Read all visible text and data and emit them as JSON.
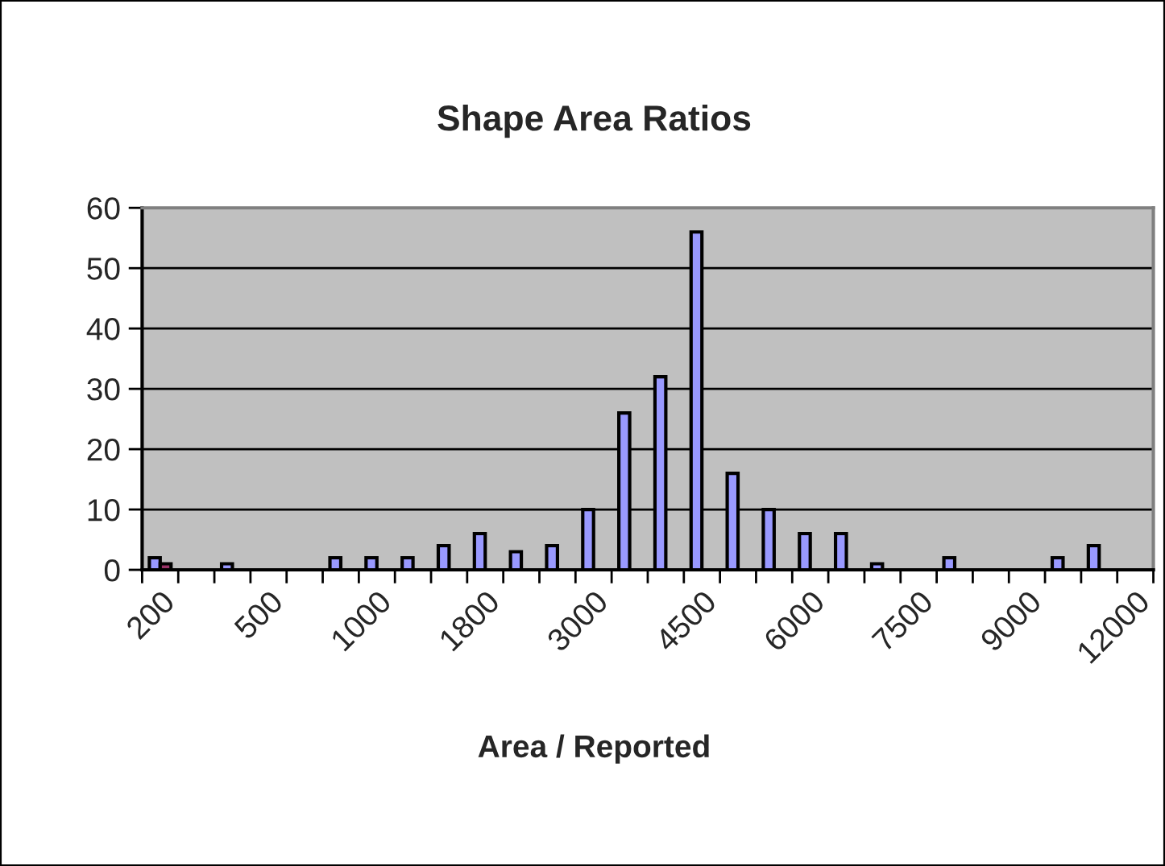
{
  "chart_data": {
    "type": "bar",
    "title": "Shape Area Ratios",
    "xlabel": "Area / Reported",
    "categories": [
      "200",
      null,
      null,
      "500",
      null,
      null,
      "1000",
      null,
      null,
      "1800",
      null,
      null,
      "3000",
      null,
      null,
      "4500",
      null,
      null,
      "6000",
      null,
      null,
      "7500",
      null,
      null,
      "9000",
      null,
      null,
      "12000"
    ],
    "series": [
      {
        "color": "#9999ff",
        "values": [
          2,
          null,
          1,
          null,
          null,
          2,
          2,
          2,
          4,
          6,
          3,
          4,
          10,
          26,
          32,
          56,
          16,
          10,
          6,
          6,
          1,
          null,
          2,
          null,
          null,
          2,
          4,
          null
        ]
      },
      {
        "color": "#993366",
        "values": [
          1,
          null,
          null,
          null,
          null,
          null,
          null,
          null,
          null,
          null,
          null,
          null,
          null,
          null,
          null,
          null,
          null,
          null,
          null,
          null,
          null,
          null,
          null,
          null,
          null,
          null,
          null,
          null
        ]
      }
    ],
    "ylim": [
      0,
      60
    ],
    "yticks": [
      0,
      10,
      20,
      30,
      40,
      50,
      60
    ],
    "grid": "y",
    "legend": false
  }
}
